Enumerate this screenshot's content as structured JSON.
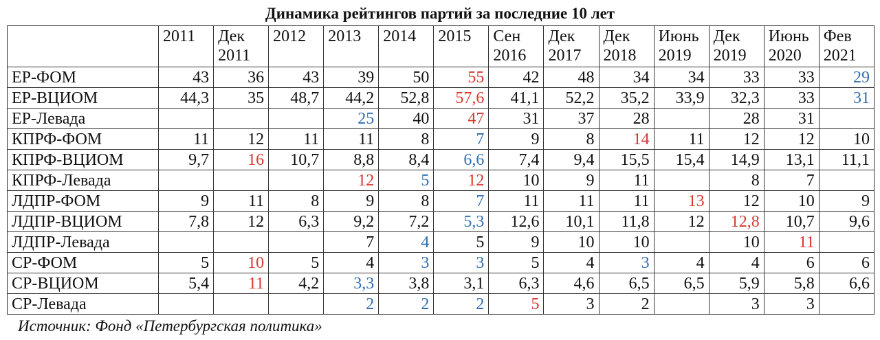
{
  "title": "Динамика рейтингов партий за последние 10 лет",
  "table": {
    "columns": [
      "2011",
      "Дек 2011",
      "2012",
      "2013",
      "2014",
      "2015",
      "Сен 2016",
      "Дек 2017",
      "Дек 2018",
      "Июнь 2019",
      "Дек 2019",
      "Июнь 2020",
      "Фев 2021"
    ],
    "rows": [
      {
        "label": "ЕР-ФОМ",
        "cells": [
          "43",
          "36",
          "43",
          "39",
          "50",
          {
            "text": "55",
            "color": "#d8372f"
          },
          "42",
          "48",
          "34",
          "34",
          "33",
          "33",
          {
            "text": "29",
            "color": "#2e6db4"
          }
        ]
      },
      {
        "label": "ЕР-ВЦИОМ",
        "cells": [
          "44,3",
          "35",
          "48,7",
          "44,2",
          "52,8",
          {
            "text": "57,6",
            "color": "#d8372f"
          },
          "41,1",
          "52,2",
          "35,2",
          "33,9",
          "32,3",
          "33",
          {
            "text": "31",
            "color": "#2e6db4"
          }
        ]
      },
      {
        "label": "ЕР-Левада",
        "cells": [
          null,
          null,
          null,
          {
            "text": "25",
            "color": "#2e6db4"
          },
          "40",
          {
            "text": "47",
            "color": "#d8372f"
          },
          "31",
          "37",
          "28",
          null,
          "28",
          "31",
          null
        ]
      },
      {
        "label": "КПРФ-ФОМ",
        "cells": [
          "11",
          "12",
          "11",
          "11",
          "8",
          {
            "text": "7",
            "color": "#2e6db4"
          },
          "9",
          "8",
          {
            "text": "14",
            "color": "#d8372f"
          },
          "11",
          "12",
          "12",
          "10"
        ]
      },
      {
        "label": "КПРФ-ВЦИОМ",
        "cells": [
          "9,7",
          {
            "text": "16",
            "color": "#d8372f"
          },
          "10,7",
          "8,8",
          "8,4",
          {
            "text": "6,6",
            "color": "#2e6db4"
          },
          "7,4",
          "9,4",
          "15,5",
          "15,4",
          "14,9",
          "13,1",
          "11,1"
        ]
      },
      {
        "label": "КПРФ-Левада",
        "cells": [
          null,
          null,
          null,
          {
            "text": "12",
            "color": "#d8372f"
          },
          {
            "text": "5",
            "color": "#2e6db4"
          },
          {
            "text": "12",
            "color": "#d8372f"
          },
          "10",
          "9",
          "11",
          null,
          "8",
          "7",
          null
        ]
      },
      {
        "label": "ЛДПР-ФОМ",
        "cells": [
          "9",
          "11",
          "8",
          "9",
          "8",
          {
            "text": "7",
            "color": "#2e6db4"
          },
          "11",
          "11",
          "11",
          {
            "text": "13",
            "color": "#d8372f"
          },
          "12",
          "10",
          "9"
        ]
      },
      {
        "label": "ЛДПР-ВЦИОМ",
        "cells": [
          "7,8",
          "12",
          "6,3",
          "9,2",
          "7,2",
          {
            "text": "5,3",
            "color": "#2e6db4"
          },
          "12,6",
          "10,1",
          "11,8",
          "12",
          {
            "text": "12,8",
            "color": "#d8372f"
          },
          "10,7",
          "9,6"
        ]
      },
      {
        "label": "ЛДПР-Левада",
        "cells": [
          null,
          null,
          null,
          "7",
          {
            "text": "4",
            "color": "#2e6db4"
          },
          "5",
          "9",
          "10",
          "10",
          null,
          "10",
          {
            "text": "11",
            "color": "#d8372f"
          },
          null
        ]
      },
      {
        "label": "СР-ФОМ",
        "cells": [
          "5",
          {
            "text": "10",
            "color": "#d8372f"
          },
          "5",
          "4",
          {
            "text": "3",
            "color": "#2e6db4"
          },
          {
            "text": "3",
            "color": "#2e6db4"
          },
          "5",
          "4",
          {
            "text": "3",
            "color": "#2e6db4"
          },
          "4",
          "4",
          "6",
          "6"
        ]
      },
      {
        "label": "СР-ВЦИОМ",
        "cells": [
          "5,4",
          {
            "text": "11",
            "color": "#d8372f"
          },
          "4,2",
          {
            "text": "3,3",
            "color": "#2e6db4"
          },
          "3,8",
          "3,1",
          "6,3",
          "4,6",
          "6,5",
          "6,5",
          "5,9",
          "5,8",
          "6,6"
        ]
      },
      {
        "label": "СР-Левада",
        "cells": [
          null,
          null,
          null,
          {
            "text": "2",
            "color": "#2e6db4"
          },
          {
            "text": "2",
            "color": "#2e6db4"
          },
          {
            "text": "2",
            "color": "#2e6db4"
          },
          {
            "text": "5",
            "color": "#d8372f"
          },
          "3",
          "2",
          null,
          "3",
          "3",
          null
        ]
      }
    ]
  },
  "source": "Источник: Фонд «Петербургская политика»"
}
